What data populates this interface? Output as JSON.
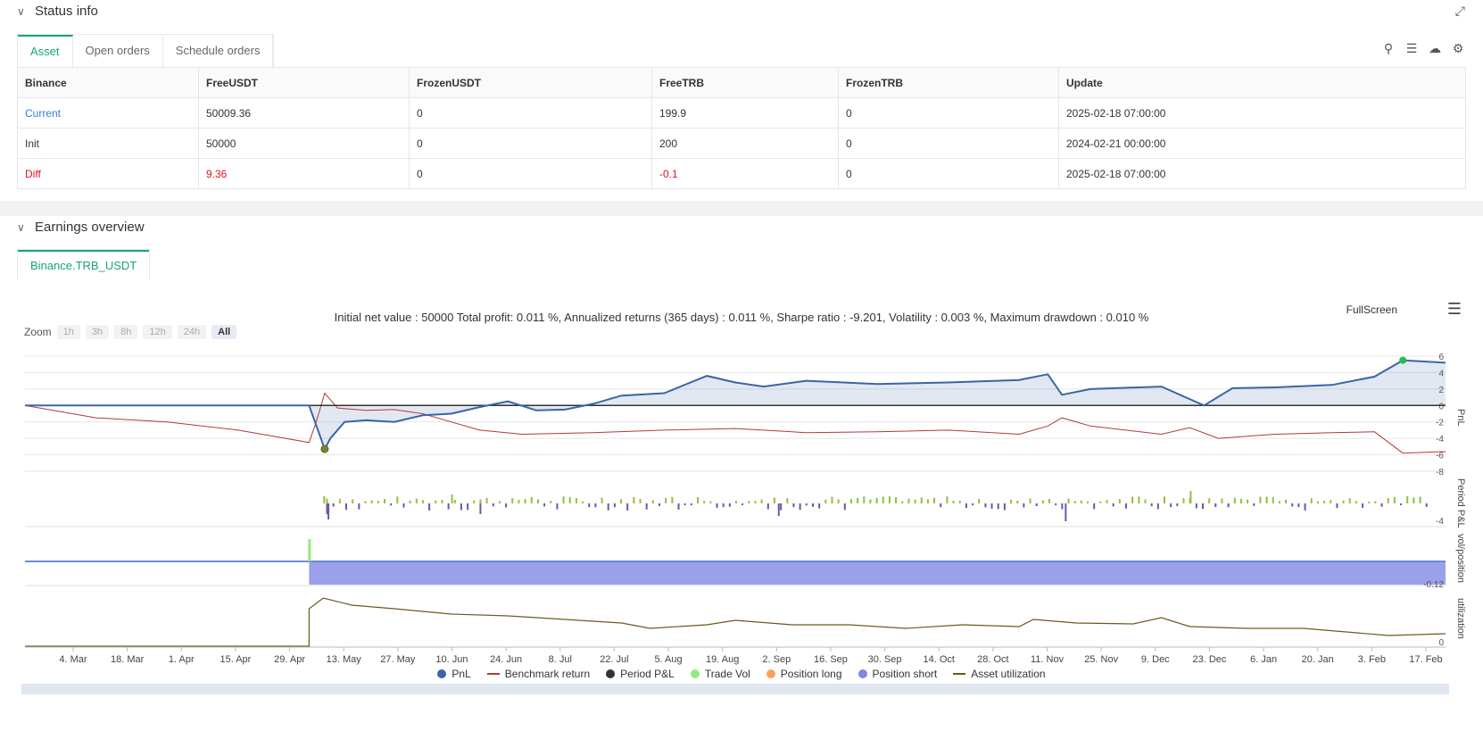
{
  "status": {
    "title": "Status info",
    "tabs": [
      "Asset",
      "Open orders",
      "Schedule orders"
    ],
    "table": {
      "headers": [
        "Binance",
        "FreeUSDT",
        "FrozenUSDT",
        "FreeTRB",
        "FrozenTRB",
        "Update"
      ],
      "rows": [
        [
          "Current",
          "50009.36",
          "0",
          "199.9",
          "0",
          "2025-02-18 07:00:00"
        ],
        [
          "Init",
          "50000",
          "0",
          "200",
          "0",
          "2024-02-21 00:00:00"
        ],
        [
          "Diff",
          "9.36",
          "0",
          "-0.1",
          "0",
          "2025-02-18 07:00:00"
        ]
      ]
    }
  },
  "earnings": {
    "title": "Earnings overview",
    "tab": "Binance.TRB_USDT",
    "summary": "Initial net value : 50000 Total profit: 0.011 %, Annualized returns (365 days) : 0.011 %, Sharpe ratio : -9.201, Volatility : 0.003 %, Maximum drawdown : 0.010 %",
    "fullscreen": "FullScreen",
    "zoom": {
      "label": "Zoom",
      "buttons": [
        "1h",
        "3h",
        "8h",
        "12h",
        "24h",
        "All"
      ],
      "active": "All"
    }
  },
  "chart_data": {
    "type": "line",
    "x_ticks": [
      "4. Mar",
      "18. Mar",
      "1. Apr",
      "15. Apr",
      "29. Apr",
      "13. May",
      "27. May",
      "10. Jun",
      "24. Jun",
      "8. Jul",
      "22. Jul",
      "5. Aug",
      "19. Aug",
      "2. Sep",
      "16. Sep",
      "30. Sep",
      "14. Oct",
      "28. Oct",
      "11. Nov",
      "25. Nov",
      "9. Dec",
      "23. Dec",
      "6. Jan",
      "20. Jan",
      "3. Feb",
      "17. Feb"
    ],
    "panes": [
      {
        "ylabel": "PnL",
        "y_ticks": [
          "6",
          "4",
          "2",
          "0",
          "-2",
          "-4",
          "-6",
          "-8"
        ],
        "ylim": [
          -8,
          6
        ]
      },
      {
        "ylabel": "Period P&L",
        "y_ticks": [
          "-4"
        ]
      },
      {
        "ylabel": "vol/position",
        "y_ticks": [
          "-0.12"
        ]
      },
      {
        "ylabel": "utilization",
        "y_ticks": [
          "0"
        ]
      }
    ],
    "series": [
      {
        "name": "PnL",
        "color": "#3a64a8",
        "x": [
          0,
          0.2,
          0.211,
          0.215,
          0.225,
          0.24,
          0.26,
          0.28,
          0.3,
          0.32,
          0.34,
          0.36,
          0.38,
          0.4,
          0.42,
          0.45,
          0.48,
          0.5,
          0.52,
          0.55,
          0.6,
          0.65,
          0.7,
          0.72,
          0.73,
          0.75,
          0.8,
          0.83,
          0.85,
          0.88,
          0.92,
          0.95,
          0.97,
          1.0
        ],
        "values": [
          0,
          0,
          -5.3,
          -4,
          -2,
          -1.8,
          -2,
          -1.2,
          -1,
          -0.2,
          0.5,
          -0.6,
          -0.5,
          0.2,
          1.2,
          1.5,
          3.6,
          2.8,
          2.3,
          3,
          2.6,
          2.8,
          3.1,
          3.8,
          1.3,
          2,
          2.3,
          0,
          2.1,
          2.2,
          2.5,
          3.5,
          5.5,
          5.2
        ]
      },
      {
        "name": "Benchmark return",
        "color": "#b03a3a",
        "x": [
          0,
          0.05,
          0.1,
          0.15,
          0.2,
          0.205,
          0.211,
          0.22,
          0.24,
          0.26,
          0.28,
          0.3,
          0.32,
          0.35,
          0.4,
          0.45,
          0.5,
          0.55,
          0.6,
          0.65,
          0.7,
          0.72,
          0.73,
          0.75,
          0.8,
          0.82,
          0.84,
          0.88,
          0.92,
          0.95,
          0.97,
          1.0
        ],
        "values": [
          0,
          -1.5,
          -2,
          -3,
          -4.5,
          -2,
          1.5,
          -0.3,
          -0.6,
          -0.5,
          -1,
          -2,
          -3,
          -3.5,
          -3.3,
          -3,
          -2.8,
          -3.3,
          -3.2,
          -3,
          -3.5,
          -2.5,
          -1.5,
          -2.5,
          -3.5,
          -2.7,
          -4,
          -3.5,
          -3.3,
          -3.2,
          -5.8,
          -5.6
        ]
      },
      {
        "name": "Period P&L",
        "color": "#333333"
      },
      {
        "name": "Trade Vol",
        "color": "#90ed7d"
      },
      {
        "name": "Position long",
        "color": "#f7a35c"
      },
      {
        "name": "Position short",
        "color": "#8085e9"
      },
      {
        "name": "Asset utilization",
        "color": "#6b5a1e"
      }
    ]
  }
}
